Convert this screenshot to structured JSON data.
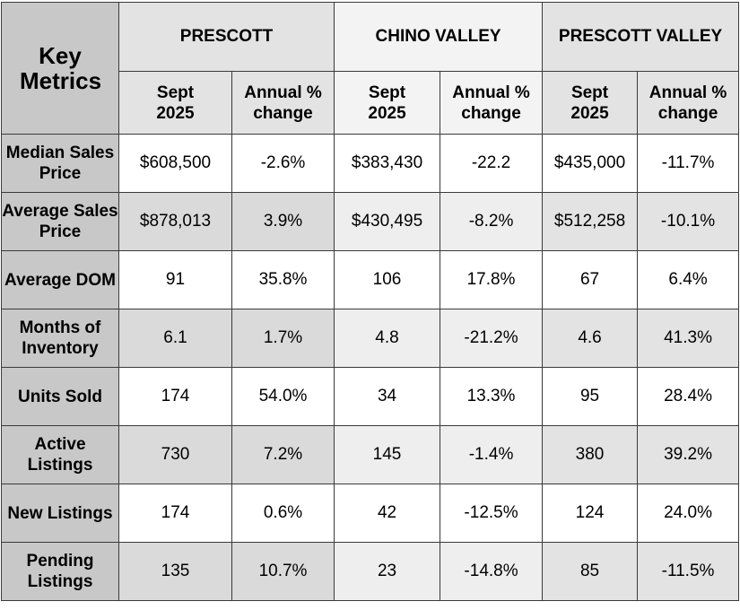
{
  "header": {
    "key_metrics": "Key Metrics",
    "regions": [
      "PRESCOTT",
      "CHINO VALLEY",
      "PRESCOTT VALLEY"
    ],
    "sub_month": "Sept 2025",
    "sub_change": "Annual % change"
  },
  "rows": [
    {
      "label": "Median Sales Price",
      "values": [
        "$608,500",
        "-2.6%",
        "$383,430",
        "-22.2",
        "$435,000",
        "-11.7%"
      ]
    },
    {
      "label": "Average Sales Price",
      "values": [
        "$878,013",
        "3.9%",
        "$430,495",
        "-8.2%",
        "$512,258",
        "-10.1%"
      ]
    },
    {
      "label": "Average DOM",
      "values": [
        "91",
        "35.8%",
        "106",
        "17.8%",
        "67",
        "6.4%"
      ]
    },
    {
      "label": "Months of Inventory",
      "values": [
        "6.1",
        "1.7%",
        "4.8",
        "-21.2%",
        "4.6",
        "41.3%"
      ]
    },
    {
      "label": "Units Sold",
      "values": [
        "174",
        "54.0%",
        "34",
        "13.3%",
        "95",
        "28.4%"
      ]
    },
    {
      "label": "Active Listings",
      "values": [
        "730",
        "7.2%",
        "145",
        "-1.4%",
        "380",
        "39.2%"
      ]
    },
    {
      "label": "New Listings",
      "values": [
        "174",
        "0.6%",
        "42",
        "-12.5%",
        "124",
        "24.0%"
      ]
    },
    {
      "label": "Pending Listings",
      "values": [
        "135",
        "10.7%",
        "23",
        "-14.8%",
        "85",
        "-11.5%"
      ]
    }
  ],
  "colors": {
    "label_bg": "#c8c8c8",
    "header_prescott_bg": "#e3e3e3",
    "header_chino_bg": "#f3f3f3",
    "header_pv_bg": "#e3e3e3",
    "border": "#3a3a3a"
  }
}
